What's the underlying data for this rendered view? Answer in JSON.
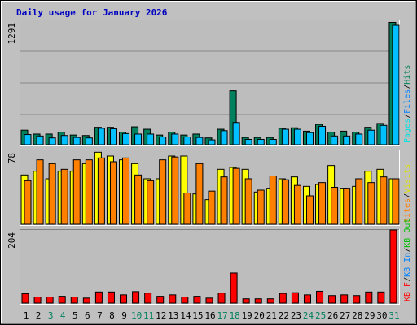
{
  "title": "Daily usage for January 2026",
  "colors": {
    "background": "#c0c0c0",
    "border_light": "#ffffff",
    "border_dark": "#808080",
    "plot_bg": "#bdbdbd",
    "grid": "#878787",
    "title": "#0000c0",
    "hits": "#00805c",
    "files": "#00c0ff",
    "pages": "#00e0e0",
    "visits": "#ffff00",
    "sites": "#ff8000",
    "kb_f": "#ff0000",
    "kb_in": "#0080ff",
    "kb_out": "#00c000",
    "weekday_label": "#000000",
    "weekend_label": "#00805c"
  },
  "chart_data": [
    {
      "type": "bar",
      "panel": "requests",
      "ymax_label": "1291",
      "ylim": [
        0,
        1291
      ],
      "legend": [
        {
          "text": "Pages",
          "color": "#00e0e0"
        },
        {
          "text": "/",
          "color": "#000000"
        },
        {
          "text": "Files",
          "color": "#0080ff"
        },
        {
          "text": "/",
          "color": "#000000"
        },
        {
          "text": "Hits",
          "color": "#00805c"
        }
      ],
      "categories": [
        "1",
        "2",
        "3",
        "4",
        "5",
        "6",
        "7",
        "8",
        "9",
        "10",
        "11",
        "12",
        "13",
        "14",
        "15",
        "16",
        "17",
        "18",
        "19",
        "20",
        "21",
        "22",
        "23",
        "24",
        "25",
        "26",
        "27",
        "28",
        "29",
        "30",
        "31"
      ],
      "series": [
        {
          "name": "Hits",
          "color": "#00805c",
          "values": [
            150,
            110,
            110,
            130,
            100,
            95,
            180,
            180,
            130,
            185,
            160,
            100,
            130,
            100,
            110,
            70,
            160,
            560,
            75,
            75,
            75,
            170,
            175,
            140,
            210,
            130,
            140,
            130,
            180,
            220,
            1270
          ]
        },
        {
          "name": "Files",
          "color": "#00c0ff",
          "values": [
            105,
            90,
            70,
            95,
            75,
            70,
            170,
            165,
            115,
            110,
            110,
            80,
            110,
            80,
            75,
            50,
            145,
            230,
            55,
            55,
            55,
            160,
            160,
            125,
            190,
            90,
            90,
            110,
            150,
            200,
            1240
          ]
        },
        {
          "name": "Pages",
          "color": "#00e0e0",
          "values": [
            0,
            0,
            0,
            0,
            0,
            0,
            0,
            0,
            0,
            0,
            0,
            0,
            0,
            0,
            0,
            0,
            0,
            0,
            0,
            0,
            0,
            0,
            0,
            0,
            0,
            0,
            0,
            0,
            0,
            0,
            0
          ]
        }
      ]
    },
    {
      "type": "bar",
      "panel": "visits",
      "ymax_label": "78",
      "ylim": [
        0,
        78
      ],
      "legend": [
        {
          "text": "Sites",
          "color": "#ff8000"
        },
        {
          "text": "/",
          "color": "#000000"
        },
        {
          "text": "Visits",
          "color": "#e0e000"
        }
      ],
      "categories": [
        "1",
        "2",
        "3",
        "4",
        "5",
        "6",
        "7",
        "8",
        "9",
        "10",
        "11",
        "12",
        "13",
        "14",
        "15",
        "16",
        "17",
        "18",
        "19",
        "20",
        "21",
        "22",
        "23",
        "24",
        "25",
        "26",
        "27",
        "28",
        "29",
        "30",
        "31"
      ],
      "series": [
        {
          "name": "Visits",
          "color": "#ffff00",
          "values": [
            52,
            56,
            48,
            56,
            56,
            64,
            76,
            72,
            68,
            64,
            48,
            48,
            72,
            72,
            32,
            26,
            58,
            60,
            58,
            34,
            38,
            48,
            50,
            40,
            42,
            62,
            38,
            40,
            56,
            58,
            48
          ]
        },
        {
          "name": "Sites",
          "color": "#ff8000",
          "values": [
            46,
            68,
            64,
            58,
            68,
            68,
            70,
            66,
            70,
            52,
            46,
            68,
            71,
            33,
            64,
            35,
            50,
            59,
            48,
            36,
            51,
            47,
            41,
            30,
            44,
            39,
            38,
            48,
            44,
            50,
            48
          ]
        }
      ]
    },
    {
      "type": "bar",
      "panel": "kbytes",
      "ymax_label": "204",
      "ylim": [
        0,
        204
      ],
      "legend": [
        {
          "text": "KB F",
          "color": "#ff0000"
        },
        {
          "text": "/",
          "color": "#000000"
        },
        {
          "text": "KB In",
          "color": "#0080ff"
        },
        {
          "text": "/",
          "color": "#000000"
        },
        {
          "text": "KB Out",
          "color": "#00c000"
        }
      ],
      "categories": [
        "1",
        "2",
        "3",
        "4",
        "5",
        "6",
        "7",
        "8",
        "9",
        "10",
        "11",
        "12",
        "13",
        "14",
        "15",
        "16",
        "17",
        "18",
        "19",
        "20",
        "21",
        "22",
        "23",
        "24",
        "25",
        "26",
        "27",
        "28",
        "29",
        "30",
        "31"
      ],
      "series": [
        {
          "name": "KB F",
          "color": "#ff0000",
          "values": [
            26,
            17,
            17,
            19,
            17,
            14,
            31,
            31,
            23,
            32,
            28,
            19,
            23,
            17,
            19,
            14,
            28,
            84,
            12,
            12,
            12,
            27,
            29,
            23,
            33,
            21,
            23,
            21,
            31,
            31,
            204
          ]
        }
      ]
    }
  ],
  "x_axis": {
    "days": [
      "1",
      "2",
      "3",
      "4",
      "5",
      "6",
      "7",
      "8",
      "9",
      "10",
      "11",
      "12",
      "13",
      "14",
      "15",
      "16",
      "17",
      "18",
      "19",
      "20",
      "21",
      "22",
      "23",
      "24",
      "25",
      "26",
      "27",
      "28",
      "29",
      "30",
      "31"
    ],
    "weekend": [
      false,
      false,
      true,
      true,
      false,
      false,
      false,
      false,
      false,
      true,
      true,
      false,
      false,
      false,
      false,
      false,
      true,
      true,
      false,
      false,
      false,
      false,
      false,
      true,
      true,
      false,
      false,
      false,
      false,
      false,
      true
    ]
  }
}
